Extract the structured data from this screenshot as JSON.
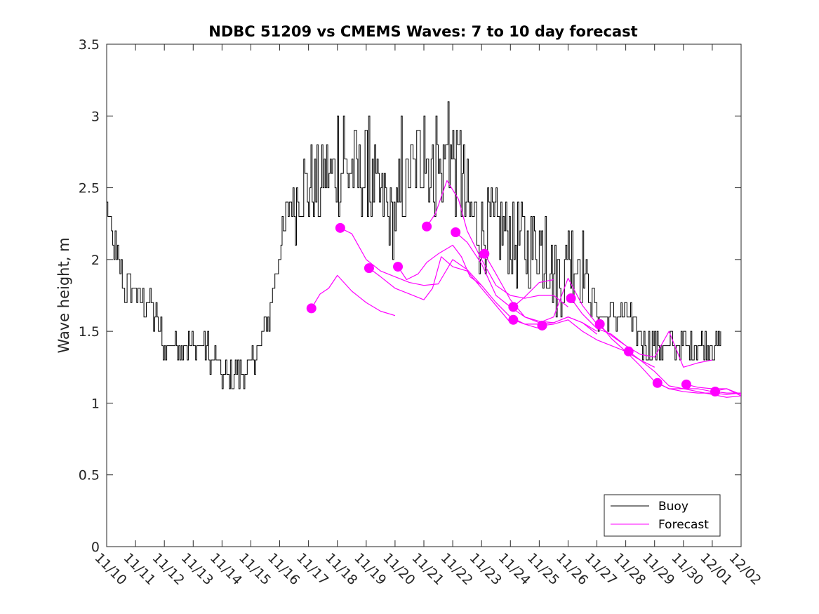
{
  "chart_data": {
    "type": "line",
    "title": "NDBC 51209 vs CMEMS Waves: 7 to 10 day forecast",
    "xlabel": "",
    "ylabel": "Wave height, m",
    "xlim": [
      0,
      22
    ],
    "ylim": [
      0,
      3.5
    ],
    "x_ticks": [
      0,
      1,
      2,
      3,
      4,
      5,
      6,
      7,
      8,
      9,
      10,
      11,
      12,
      13,
      14,
      15,
      16,
      17,
      18,
      19,
      20,
      21,
      22
    ],
    "x_tick_labels": [
      "11/10",
      "11/11",
      "11/12",
      "11/13",
      "11/14",
      "11/15",
      "11/16",
      "11/17",
      "11/18",
      "11/19",
      "11/20",
      "11/21",
      "11/22",
      "11/23",
      "11/24",
      "11/25",
      "11/26",
      "11/27",
      "11/28",
      "11/29",
      "11/30",
      "12/01",
      "12/02"
    ],
    "y_ticks": [
      0,
      0.5,
      1,
      1.5,
      2,
      2.5,
      3,
      3.5
    ],
    "y_tick_labels": [
      "0",
      "0.5",
      "1",
      "1.5",
      "2",
      "2.5",
      "3",
      "3.5"
    ],
    "legend": {
      "position": "bottom-right",
      "entries": [
        "Buoy",
        "Forecast"
      ]
    },
    "colors": {
      "buoy": "#000000",
      "forecast": "#ff00ff",
      "axis": "#262626"
    },
    "buoy": {
      "name": "Buoy",
      "noise": 0.1,
      "anchors": [
        [
          0.0,
          2.35
        ],
        [
          0.3,
          2.05
        ],
        [
          0.7,
          1.75
        ],
        [
          1.0,
          1.75
        ],
        [
          1.5,
          1.7
        ],
        [
          2.0,
          1.4
        ],
        [
          2.5,
          1.35
        ],
        [
          3.0,
          1.4
        ],
        [
          3.5,
          1.35
        ],
        [
          4.0,
          1.2
        ],
        [
          4.5,
          1.2
        ],
        [
          5.0,
          1.25
        ],
        [
          5.3,
          1.4
        ],
        [
          5.7,
          1.7
        ],
        [
          6.0,
          2.1
        ],
        [
          6.3,
          2.35
        ],
        [
          6.6,
          2.45
        ],
        [
          7.0,
          2.5
        ],
        [
          7.5,
          2.55
        ],
        [
          8.0,
          2.6
        ],
        [
          8.5,
          2.6
        ],
        [
          9.0,
          2.6
        ],
        [
          9.5,
          2.4
        ],
        [
          10.0,
          2.25
        ],
        [
          10.3,
          2.5
        ],
        [
          10.8,
          2.7
        ],
        [
          11.2,
          2.65
        ],
        [
          11.6,
          2.6
        ],
        [
          11.9,
          2.75
        ],
        [
          12.3,
          2.5
        ],
        [
          12.6,
          2.3
        ],
        [
          13.0,
          2.2
        ],
        [
          13.5,
          2.2
        ],
        [
          14.0,
          2.15
        ],
        [
          14.5,
          2.1
        ],
        [
          15.0,
          2.1
        ],
        [
          15.5,
          1.9
        ],
        [
          16.0,
          1.95
        ],
        [
          16.5,
          1.95
        ],
        [
          17.0,
          1.6
        ],
        [
          17.5,
          1.6
        ],
        [
          18.0,
          1.6
        ],
        [
          18.5,
          1.45
        ],
        [
          19.0,
          1.35
        ],
        [
          19.5,
          1.4
        ],
        [
          20.0,
          1.4
        ],
        [
          20.5,
          1.4
        ],
        [
          21.3,
          1.4
        ]
      ],
      "spikes": [
        [
          8.0,
          3.0
        ],
        [
          8.2,
          3.0
        ],
        [
          9.1,
          3.0
        ],
        [
          10.2,
          3.0
        ],
        [
          11.0,
          3.0
        ],
        [
          11.4,
          3.0
        ],
        [
          11.85,
          3.1
        ],
        [
          12.25,
          2.85
        ],
        [
          15.2,
          2.3
        ],
        [
          16.0,
          2.2
        ]
      ]
    },
    "forecast": {
      "name": "Forecast",
      "series": [
        {
          "start": [
            7.1,
            1.66
          ],
          "points": [
            [
              7.1,
              1.66
            ],
            [
              7.4,
              1.76
            ],
            [
              7.7,
              1.8
            ],
            [
              8.0,
              1.89
            ],
            [
              8.5,
              1.78
            ],
            [
              9.0,
              1.7
            ],
            [
              9.5,
              1.64
            ],
            [
              10.0,
              1.61
            ]
          ]
        },
        {
          "start": [
            8.1,
            2.22
          ],
          "points": [
            [
              8.1,
              2.22
            ],
            [
              8.5,
              2.18
            ],
            [
              9.0,
              2.0
            ],
            [
              9.5,
              1.92
            ],
            [
              10.0,
              1.88
            ],
            [
              10.5,
              1.84
            ],
            [
              11.0,
              1.82
            ],
            [
              11.5,
              1.83
            ],
            [
              12.0,
              2.0
            ],
            [
              12.5,
              1.93
            ],
            [
              13.0,
              1.82
            ]
          ]
        },
        {
          "start": [
            9.1,
            1.94
          ],
          "points": [
            [
              9.1,
              1.94
            ],
            [
              9.5,
              1.88
            ],
            [
              10.0,
              1.8
            ],
            [
              10.5,
              1.76
            ],
            [
              11.0,
              1.72
            ],
            [
              11.3,
              1.8
            ],
            [
              11.6,
              2.02
            ],
            [
              12.0,
              1.95
            ],
            [
              12.5,
              1.92
            ],
            [
              13.0,
              1.8
            ],
            [
              13.5,
              1.68
            ],
            [
              14.0,
              1.56
            ]
          ]
        },
        {
          "start": [
            10.1,
            1.95
          ],
          "points": [
            [
              10.1,
              1.95
            ],
            [
              10.4,
              1.86
            ],
            [
              10.8,
              1.9
            ],
            [
              11.1,
              1.98
            ],
            [
              11.5,
              2.04
            ],
            [
              12.0,
              2.1
            ],
            [
              12.3,
              2.02
            ],
            [
              12.6,
              1.88
            ],
            [
              13.0,
              1.82
            ],
            [
              13.5,
              1.7
            ],
            [
              14.0,
              1.6
            ],
            [
              14.5,
              1.55
            ],
            [
              15.0,
              1.52
            ]
          ]
        },
        {
          "start": [
            11.1,
            2.23
          ],
          "points": [
            [
              11.1,
              2.23
            ],
            [
              11.4,
              2.32
            ],
            [
              11.8,
              2.55
            ],
            [
              12.2,
              2.42
            ],
            [
              12.5,
              2.2
            ],
            [
              13.0,
              2.0
            ],
            [
              13.5,
              1.82
            ],
            [
              14.0,
              1.75
            ],
            [
              14.5,
              1.73
            ],
            [
              15.0,
              1.75
            ],
            [
              15.5,
              1.75
            ],
            [
              16.0,
              1.67
            ]
          ]
        },
        {
          "start": [
            12.1,
            2.19
          ],
          "points": [
            [
              12.1,
              2.19
            ],
            [
              12.5,
              2.12
            ],
            [
              13.0,
              1.97
            ],
            [
              13.5,
              1.75
            ],
            [
              14.0,
              1.67
            ],
            [
              14.5,
              1.6
            ],
            [
              15.0,
              1.57
            ],
            [
              15.5,
              1.56
            ],
            [
              16.0,
              1.6
            ],
            [
              16.5,
              1.56
            ],
            [
              17.0,
              1.48
            ]
          ]
        },
        {
          "start": [
            13.1,
            2.04
          ],
          "points": [
            [
              13.1,
              2.04
            ],
            [
              13.5,
              1.9
            ],
            [
              14.0,
              1.72
            ],
            [
              14.5,
              1.6
            ],
            [
              15.0,
              1.56
            ],
            [
              15.5,
              1.6
            ],
            [
              16.0,
              1.87
            ],
            [
              16.5,
              1.68
            ],
            [
              17.0,
              1.55
            ],
            [
              17.5,
              1.47
            ],
            [
              18.0,
              1.4
            ]
          ]
        },
        {
          "start": [
            14.1,
            1.67
          ],
          "points": [
            [
              14.1,
              1.67
            ],
            [
              14.5,
              1.74
            ],
            [
              15.0,
              1.84
            ],
            [
              15.5,
              1.86
            ]
          ]
        },
        {
          "start": [
            14.1,
            1.58
          ],
          "points": [
            [
              14.1,
              1.58
            ],
            [
              14.5,
              1.55
            ],
            [
              15.0,
              1.55
            ],
            [
              15.5,
              1.56
            ],
            [
              16.0,
              1.6
            ],
            [
              16.5,
              1.56
            ],
            [
              17.0,
              1.5
            ]
          ]
        },
        {
          "start": [
            15.1,
            1.54
          ],
          "points": [
            [
              15.1,
              1.54
            ],
            [
              15.5,
              1.55
            ],
            [
              16.0,
              1.58
            ],
            [
              16.5,
              1.5
            ],
            [
              17.0,
              1.44
            ],
            [
              17.5,
              1.4
            ],
            [
              18.0,
              1.36
            ],
            [
              18.5,
              1.3
            ],
            [
              19.0,
              1.25
            ]
          ]
        },
        {
          "start": [
            16.1,
            1.73
          ],
          "points": [
            [
              16.1,
              1.73
            ],
            [
              16.5,
              1.62
            ],
            [
              17.0,
              1.52
            ],
            [
              17.5,
              1.48
            ],
            [
              18.0,
              1.4
            ],
            [
              18.5,
              1.34
            ],
            [
              19.0,
              1.32
            ],
            [
              19.5,
              1.5
            ],
            [
              20.0,
              1.25
            ],
            [
              20.5,
              1.28
            ],
            [
              21.0,
              1.3
            ]
          ]
        },
        {
          "start": [
            17.1,
            1.55
          ],
          "points": [
            [
              17.1,
              1.55
            ],
            [
              17.5,
              1.45
            ],
            [
              18.0,
              1.36
            ],
            [
              18.5,
              1.26
            ],
            [
              19.0,
              1.15
            ],
            [
              19.5,
              1.1
            ],
            [
              20.0,
              1.1
            ],
            [
              20.5,
              1.1
            ],
            [
              21.0,
              1.08
            ],
            [
              21.5,
              1.1
            ],
            [
              22.0,
              1.05
            ]
          ]
        },
        {
          "start": [
            18.1,
            1.36
          ],
          "points": [
            [
              18.1,
              1.36
            ],
            [
              18.5,
              1.3
            ],
            [
              19.0,
              1.22
            ],
            [
              19.5,
              1.12
            ],
            [
              20.0,
              1.1
            ],
            [
              20.5,
              1.08
            ],
            [
              21.0,
              1.06
            ],
            [
              21.5,
              1.04
            ],
            [
              22.0,
              1.05
            ]
          ]
        },
        {
          "start": [
            19.1,
            1.14
          ],
          "points": [
            [
              19.1,
              1.14
            ],
            [
              19.5,
              1.1
            ],
            [
              20.0,
              1.08
            ],
            [
              20.5,
              1.07
            ],
            [
              21.0,
              1.07
            ],
            [
              21.5,
              1.06
            ],
            [
              22.0,
              1.07
            ]
          ]
        },
        {
          "start": [
            20.1,
            1.13
          ],
          "points": [
            [
              20.1,
              1.13
            ],
            [
              20.5,
              1.11
            ],
            [
              21.0,
              1.1
            ],
            [
              21.5,
              1.1
            ],
            [
              22.0,
              1.06
            ]
          ]
        },
        {
          "start": [
            21.1,
            1.08
          ],
          "points": [
            [
              21.1,
              1.08
            ],
            [
              21.5,
              1.07
            ],
            [
              22.0,
              1.07
            ]
          ]
        }
      ]
    }
  }
}
